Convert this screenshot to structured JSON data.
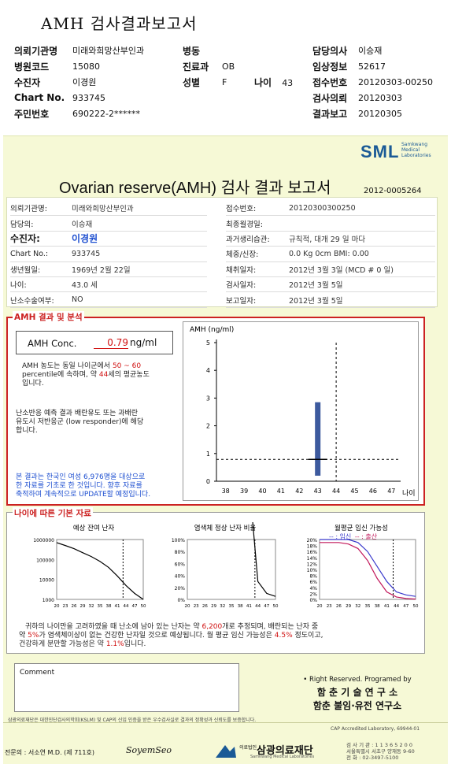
{
  "doc_title": "AMH 검사결과보고서",
  "header": {
    "left": [
      {
        "label": "의뢰기관명",
        "value": "미래와희망산부인과"
      },
      {
        "label": "병원코드",
        "value": "15080"
      },
      {
        "label": "수진자",
        "value": "이경원"
      },
      {
        "label": "Chart No.",
        "value": "933745"
      },
      {
        "label": "주민번호",
        "value": "690222-2******"
      }
    ],
    "mid": [
      {
        "label": "병동",
        "value": ""
      },
      {
        "label": "진료과",
        "value": "OB"
      },
      {
        "label": "성별",
        "value": "F"
      }
    ],
    "age_label": "나이",
    "age_value": "43",
    "right": [
      {
        "label": "담당의사",
        "value": "이승재"
      },
      {
        "label": "임상정보",
        "value": "52617"
      },
      {
        "label": "접수번호",
        "value": "20120303-00250"
      },
      {
        "label": "검사의뢰",
        "value": "20120303"
      },
      {
        "label": "결과보고",
        "value": "20120305"
      }
    ]
  },
  "logo": {
    "text": "SML",
    "sub1": "Samkwang",
    "sub2": "Medical",
    "sub3": "Laboratories"
  },
  "report": {
    "title": "Ovarian reserve(AMH) 검사 결과 보고서",
    "number": "2012-0005264",
    "info_left": [
      {
        "label": "의뢰기관명:",
        "value": "미래와희망산부인과"
      },
      {
        "label": "담당의:",
        "value": "이승재"
      },
      {
        "label": "수진자:",
        "value": "이경원"
      },
      {
        "label": "Chart No.:",
        "value": "933745"
      },
      {
        "label": "생년월일:",
        "value": "1969년 2월 22일"
      },
      {
        "label": "나이:",
        "value": "43.0 세"
      },
      {
        "label": "난소수술여부:",
        "value": "NO"
      }
    ],
    "info_right": [
      {
        "label": "접수번호:",
        "value": "20120300300250"
      },
      {
        "label": "최종월경일:",
        "value": ""
      },
      {
        "label": "과거생리습관:",
        "value": "규칙적, 대개   29 일 마다"
      },
      {
        "label": "체중/신장:",
        "value": "0.0 Kg       0cm    BMI:   0.00"
      },
      {
        "label": "채취일자:",
        "value": "2012년 3월 3일     (MCD #  0 일)"
      },
      {
        "label": "검사일자:",
        "value": "2012년 3월 5일"
      },
      {
        "label": "보고일자:",
        "value": "2012년 3월 5일"
      }
    ]
  },
  "amh_section": {
    "title": "AMH 결과 및 분석",
    "conc_label": "AMH Conc.",
    "conc_value": "0.79",
    "conc_unit": "ng/ml",
    "line1a": "AMH 농도는 동일 나이군에서",
    "line1b": "50 ~  60",
    "line2a": "percentile에 속하며,  약",
    "line2b": "44",
    "line2c": "세의 평균농도",
    "line3": "입니다.",
    "resp1": "난소반응 예측 결과 배란유도 또는 과배란",
    "resp2": "유도시 저반응군 (low responder)에 해당",
    "resp3": "합니다.",
    "note1": "본 결과는 한국인 여성 6,976명을 대상으로",
    "note2": "한 자료를 기초로 한 것입니다. 향후 자료를",
    "note3": "축적하여 계속적으로 UPDATE할 예정입니다."
  },
  "chart_data": [
    {
      "type": "bar",
      "title": "",
      "ylabel": "AMH (ng/ml)",
      "xlabel": "나이",
      "x_ticks": [
        38,
        39,
        40,
        41,
        42,
        43,
        44,
        45,
        46,
        47
      ],
      "y_ticks": [
        0,
        1,
        2,
        3,
        4,
        5
      ],
      "ylim": [
        0,
        5
      ],
      "xlim": [
        37.5,
        47.5
      ],
      "range_bar": {
        "x": 43,
        "low": 0.2,
        "high": 2.85
      },
      "patient_value": {
        "x": 43,
        "y": 0.79
      },
      "reference_line_y": 0.79,
      "vertical_line_x": 44
    },
    {
      "type": "line",
      "title": "예상 잔여 난자",
      "y_ticks": [
        "1000000",
        "100000",
        "10000",
        "1000"
      ],
      "x_ticks": [
        20,
        23,
        26,
        29,
        32,
        35,
        38,
        41,
        44,
        47,
        50
      ],
      "series": [
        {
          "x": [
            20,
            23,
            26,
            29,
            32,
            35,
            38,
            41,
            44,
            47,
            50
          ],
          "y": [
            700000,
            500000,
            350000,
            220000,
            140000,
            80000,
            40000,
            15000,
            5000,
            2000,
            1000
          ]
        }
      ],
      "vertical_line_x": 43
    },
    {
      "type": "line",
      "title": "염색체 정상 난자 비율",
      "y_ticks": [
        "100%",
        "80%",
        "60%",
        "40%",
        "20%",
        "0%"
      ],
      "x_ticks": [
        20,
        23,
        26,
        29,
        32,
        35,
        38,
        41,
        44,
        47,
        50
      ],
      "series": [
        {
          "x": [
            20,
            23,
            26,
            29,
            32,
            35,
            38,
            41,
            44,
            47,
            50
          ],
          "y": [
            100,
            99,
            97,
            94,
            88,
            79,
            64,
            40,
            6,
            2,
            1
          ]
        }
      ],
      "vertical_line_x": 43
    },
    {
      "type": "line",
      "title": "월평균 임신 가능성",
      "y_ticks": [
        "20%",
        "18%",
        "16%",
        "14%",
        "12%",
        "10%",
        "8%",
        "6%",
        "4%",
        "2%",
        "0%"
      ],
      "x_ticks": [
        20,
        23,
        26,
        29,
        32,
        35,
        38,
        41,
        44,
        47,
        50
      ],
      "series": [
        {
          "name": "임신",
          "color": "#3a3acc",
          "x": [
            20,
            23,
            26,
            29,
            32,
            35,
            38,
            41,
            44,
            47,
            50
          ],
          "y": [
            20,
            20,
            20,
            20,
            19,
            16,
            11,
            6,
            2.5,
            1.5,
            1
          ]
        },
        {
          "name": "출산",
          "color": "#c2185b",
          "x": [
            20,
            23,
            26,
            29,
            32,
            35,
            38,
            41,
            44,
            47,
            50
          ],
          "y": [
            19,
            19,
            19,
            18.5,
            17,
            13,
            7,
            2.5,
            0.8,
            0.3,
            0.1
          ]
        }
      ],
      "vertical_line_x": 43
    }
  ],
  "age_section": {
    "title": "나이에 따른 기본 자료",
    "legend_prefix": "-- : ",
    "legend_a": "임신",
    "legend_b": "출산",
    "sum1a": "귀하의 나이만을 고려하였을 때 난소에 남아 있는 난자는 약",
    "sum1b": "6,200",
    "sum1c": "개로 추정되며, 배란되는 난자 중",
    "sum2a": "약",
    "sum2b": "5%",
    "sum2c": "가 염색체이상이 없는 건강한 난자일 것으로 예상됩니다. 월 평균 임신 가능성은",
    "sum2d": "4.5%",
    "sum2e": "정도이고,",
    "sum3a": "건강하게 분만할 가능성은 약",
    "sum3b": "1.1%",
    "sum3c": "입니다."
  },
  "comment": {
    "label": "Comment"
  },
  "credit": {
    "line1": "• Right Reserved. Programed by",
    "line2": "함 춘 기 술 연 구 소",
    "line3": "함춘 불임·유전 연구소"
  },
  "footer": {
    "cert": "삼광의료재단은 대한진단검사의학회(KSLM) 및 CAP의 신임 인증을 받은 우수검사실로 결과의 정확성과 신뢰도를 보증합니다.",
    "cap": "CAP  Accredited  Laboratory,  69944-01",
    "doctor": "전문의 : 서소연 M.D. (제 711호)",
    "signature": "SoyemSeo",
    "foundation_prefix": "의료법인",
    "foundation": "삼광의료재단",
    "foundation_en": "Samkwang Medical Laboratories",
    "phone": "검 사 기 관 : 1 1 3 6 5 2 0 0",
    "address": "서울특별시 서초구 양재동 9-60",
    "tel": "전 화 : 02-3497-5100"
  }
}
